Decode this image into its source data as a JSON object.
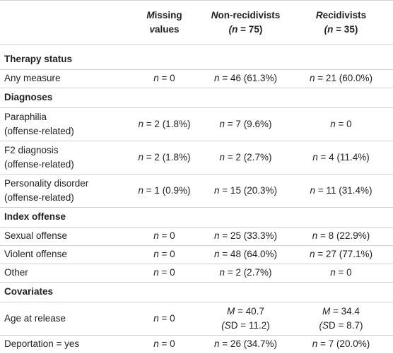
{
  "table": {
    "header": [
      [],
      [
        "Missing",
        "values"
      ],
      [
        "Non-recidivists",
        "(n = 75)"
      ],
      [
        "Recidivists",
        "(n = 35)"
      ]
    ],
    "rows": [
      {
        "section": "Therapy status"
      },
      {
        "cells": [
          [
            "Any measure"
          ],
          [
            "n = 0"
          ],
          [
            "n = 46 (61.3%)"
          ],
          [
            "n = 21 (60.0%)"
          ]
        ]
      },
      {
        "section": "Diagnoses"
      },
      {
        "cells": [
          [
            "Paraphilia",
            "(offense-related)"
          ],
          [
            "n = 2 (1.8%)"
          ],
          [
            "n = 7 (9.6%)"
          ],
          [
            "n = 0"
          ]
        ]
      },
      {
        "cells": [
          [
            "F2 diagnosis",
            "(offense-related)"
          ],
          [
            "n = 2 (1.8%)"
          ],
          [
            "n = 2 (2.7%)"
          ],
          [
            "n = 4 (11.4%)"
          ]
        ]
      },
      {
        "cells": [
          [
            "Personality disorder",
            "(offense-related)"
          ],
          [
            "n = 1 (0.9%)"
          ],
          [
            "n = 15 (20.3%)"
          ],
          [
            "n = 11 (31.4%)"
          ]
        ]
      },
      {
        "section": "Index offense"
      },
      {
        "cells": [
          [
            "Sexual offense"
          ],
          [
            "n = 0"
          ],
          [
            "n = 25 (33.3%)"
          ],
          [
            "n = 8 (22.9%)"
          ]
        ]
      },
      {
        "cells": [
          [
            "Violent offense"
          ],
          [
            "n = 0"
          ],
          [
            "n = 48 (64.0%)"
          ],
          [
            "n = 27 (77.1%)"
          ]
        ]
      },
      {
        "cells": [
          [
            "Other"
          ],
          [
            "n = 0"
          ],
          [
            "n = 2 (2.7%)"
          ],
          [
            "n = 0"
          ]
        ]
      },
      {
        "section": "Covariates"
      },
      {
        "cells": [
          [
            "Age at release"
          ],
          [
            "n = 0"
          ],
          [
            "M = 40.7",
            "(SD = 11.2)"
          ],
          [
            "M = 34.4",
            "(SD = 8.7)"
          ]
        ]
      },
      {
        "cells": [
          [
            "Deportation = yes"
          ],
          [
            "n = 0"
          ],
          [
            "n = 26 (34.7%)"
          ],
          [
            "n = 7 (20.0%)"
          ]
        ]
      }
    ]
  }
}
